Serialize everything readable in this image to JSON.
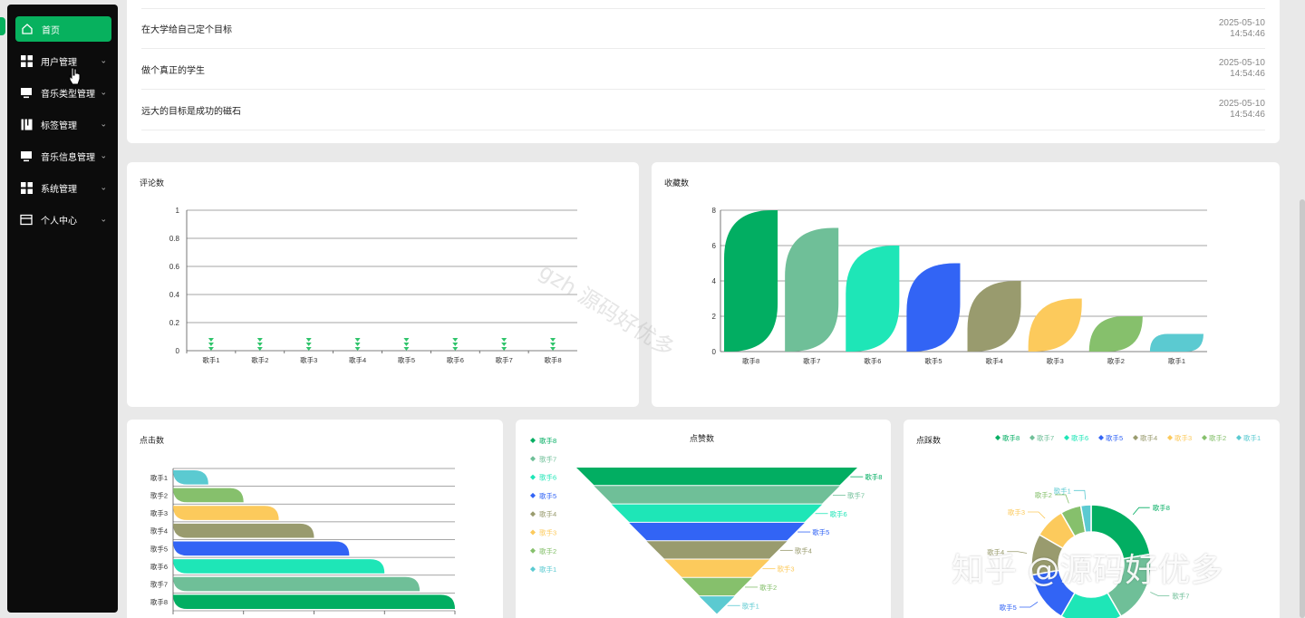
{
  "sidebar": {
    "items": [
      {
        "label": "首页",
        "icon": "home-icon",
        "active": true
      },
      {
        "label": "用户管理",
        "icon": "grid-icon"
      },
      {
        "label": "音乐类型管理",
        "icon": "monitor-icon"
      },
      {
        "label": "标签管理",
        "icon": "tag-icon"
      },
      {
        "label": "音乐信息管理",
        "icon": "monitor-icon"
      },
      {
        "label": "系统管理",
        "icon": "grid-icon"
      },
      {
        "label": "个人中心",
        "icon": "card-icon"
      }
    ]
  },
  "notices": [
    {
      "title": "在大学给自己定个目标",
      "date": "2025-05-10",
      "time": "14:54:46"
    },
    {
      "title": "做个真正的学生",
      "date": "2025-05-10",
      "time": "14:54:46"
    },
    {
      "title": "远大的目标是成功的磁石",
      "date": "2025-05-10",
      "time": "14:54:46"
    }
  ],
  "charts": {
    "comments_title": "评论数",
    "favorites_title": "收藏数",
    "clicks_title": "点击数",
    "likes_title": "点赞数",
    "dislikes_title": "点踩数"
  },
  "colors": {
    "accent": "#07b15e",
    "palette": [
      "#02ae62",
      "#6fbf98",
      "#1ee6b7",
      "#3264f5",
      "#999b6e",
      "#fcca5c",
      "#86c06c",
      "#5bcad1"
    ]
  },
  "watermarks": {
    "diagonal": "gzh 源码好优多",
    "corner": "知乎 @源码好优多"
  },
  "chart_data": [
    {
      "type": "line",
      "title": "评论数",
      "categories": [
        "歌手1",
        "歌手2",
        "歌手3",
        "歌手4",
        "歌手5",
        "歌手6",
        "歌手7",
        "歌手8"
      ],
      "values": [
        0,
        0,
        0,
        0,
        0,
        0,
        0,
        0
      ],
      "ylim": [
        0,
        1
      ],
      "yticks": [
        0,
        0.2,
        0.4,
        0.6,
        0.8,
        1
      ],
      "grid": true
    },
    {
      "type": "bar",
      "title": "收藏数",
      "categories": [
        "歌手8",
        "歌手7",
        "歌手6",
        "歌手5",
        "歌手4",
        "歌手3",
        "歌手2",
        "歌手1"
      ],
      "values": [
        8,
        7,
        6,
        5,
        4,
        3,
        2,
        1
      ],
      "ylim": [
        0,
        8
      ],
      "yticks": [
        0,
        2,
        4,
        6,
        8
      ],
      "grid": true
    },
    {
      "type": "bar",
      "orientation": "horizontal",
      "title": "点击数",
      "categories": [
        "歌手1",
        "歌手2",
        "歌手3",
        "歌手4",
        "歌手5",
        "歌手6",
        "歌手7",
        "歌手8"
      ],
      "values": [
        1,
        2,
        3,
        4,
        5,
        6,
        7,
        8
      ],
      "xlim": [
        0,
        8
      ],
      "grid": true
    },
    {
      "type": "funnel",
      "title": "点赞数",
      "categories": [
        "歌手8",
        "歌手7",
        "歌手6",
        "歌手5",
        "歌手4",
        "歌手3",
        "歌手2",
        "歌手1"
      ],
      "values": [
        8,
        7,
        6,
        5,
        4,
        3,
        2,
        1
      ],
      "legend": [
        "歌手8",
        "歌手7",
        "歌手6",
        "歌手5",
        "歌手4",
        "歌手3",
        "歌手2",
        "歌手1"
      ],
      "legend_position": "left"
    },
    {
      "type": "pie",
      "variant": "donut",
      "title": "点踩数",
      "categories": [
        "歌手8",
        "歌手7",
        "歌手6",
        "歌手5",
        "歌手4",
        "歌手3",
        "歌手2",
        "歌手1"
      ],
      "values": [
        8,
        7,
        6,
        5,
        4,
        3,
        2,
        1
      ],
      "legend": [
        "歌手8",
        "歌手7",
        "歌手6",
        "歌手5",
        "歌手4",
        "歌手3",
        "歌手2",
        "歌手1"
      ],
      "legend_position": "top-right"
    }
  ]
}
